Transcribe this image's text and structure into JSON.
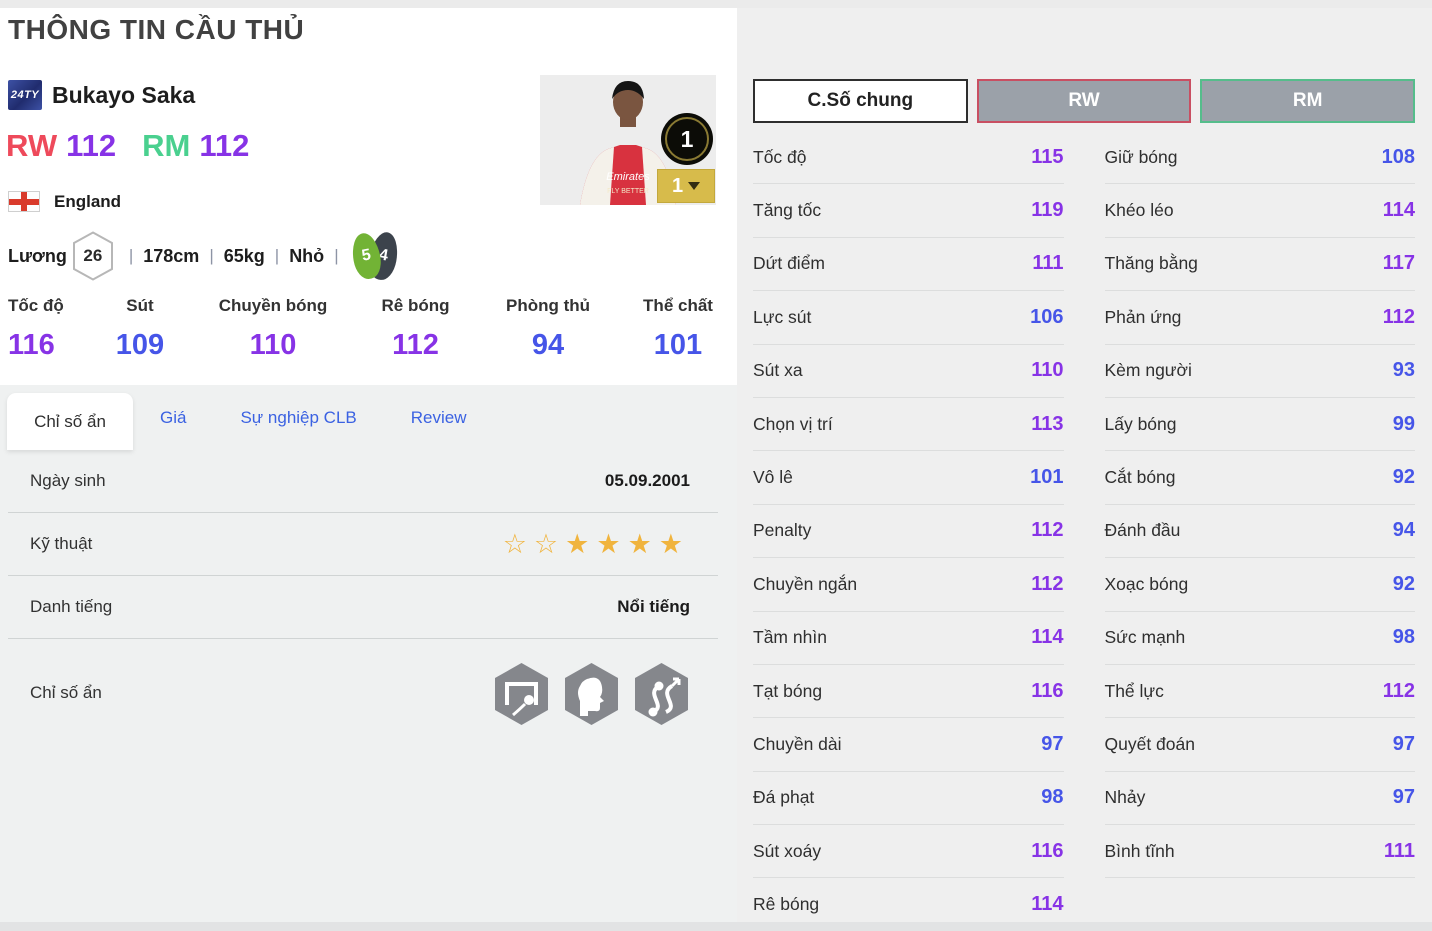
{
  "page": {
    "title": "THÔNG TIN CẦU THỦ"
  },
  "player": {
    "card_badge": "24TY",
    "name": "Bukayo Saka",
    "positions": [
      {
        "label": "RW",
        "rating": "112",
        "label_color": "#ee4a5b"
      },
      {
        "label": "RM",
        "rating": "112",
        "label_color": "#4ad08f"
      }
    ],
    "nation": "England",
    "wage_label": "Lương",
    "wage": "26",
    "height": "178cm",
    "weight": "65kg",
    "body_type": "Nhỏ",
    "foot_left": "5",
    "foot_right": "4",
    "level_badge": "1",
    "enhance_badge": "1",
    "jersey_sponsor": "Emirates",
    "jersey_slogan": "FLY BETTER"
  },
  "summary_stats": [
    {
      "label": "Tốc độ",
      "value": "116"
    },
    {
      "label": "Sút",
      "value": "109"
    },
    {
      "label": "Chuyền bóng",
      "value": "110"
    },
    {
      "label": "Rê bóng",
      "value": "112"
    },
    {
      "label": "Phòng thủ",
      "value": "94"
    },
    {
      "label": "Thể chất",
      "value": "101"
    }
  ],
  "tabs": [
    {
      "label": "Chỉ số ẩn",
      "active": true
    },
    {
      "label": "Giá",
      "active": false
    },
    {
      "label": "Sự nghiệp CLB",
      "active": false
    },
    {
      "label": "Review",
      "active": false
    }
  ],
  "details": {
    "birth_label": "Ngày sinh",
    "birth_value": "05.09.2001",
    "skill_label": "Kỹ thuật",
    "skill_stars_empty": 2,
    "skill_stars_filled": 4,
    "fame_label": "Danh tiếng",
    "fame_value": "Nổi tiếng",
    "hidden_label": "Chỉ số ẩn",
    "hidden_icons": [
      "goal-curve-shot-icon",
      "flair-head-icon",
      "dribble-path-icon"
    ]
  },
  "stat_panel": {
    "buttons": [
      {
        "label": "C.Số chung",
        "style": "overall"
      },
      {
        "label": "RW",
        "style": "rw"
      },
      {
        "label": "RM",
        "style": "rm"
      }
    ],
    "columns": [
      [
        {
          "label": "Tốc độ",
          "value": "115"
        },
        {
          "label": "Tăng tốc",
          "value": "119"
        },
        {
          "label": "Dứt điểm",
          "value": "111"
        },
        {
          "label": "Lực sút",
          "value": "106"
        },
        {
          "label": "Sút xa",
          "value": "110"
        },
        {
          "label": "Chọn vị trí",
          "value": "113"
        },
        {
          "label": "Vô lê",
          "value": "101"
        },
        {
          "label": "Penalty",
          "value": "112"
        },
        {
          "label": "Chuyền ngắn",
          "value": "112"
        },
        {
          "label": "Tầm nhìn",
          "value": "114"
        },
        {
          "label": "Tạt bóng",
          "value": "116"
        },
        {
          "label": "Chuyền dài",
          "value": "97"
        },
        {
          "label": "Đá phạt",
          "value": "98"
        },
        {
          "label": "Sút xoáy",
          "value": "116"
        },
        {
          "label": "Rê bóng",
          "value": "114"
        }
      ],
      [
        {
          "label": "Giữ bóng",
          "value": "108"
        },
        {
          "label": "Khéo léo",
          "value": "114"
        },
        {
          "label": "Thăng bằng",
          "value": "117"
        },
        {
          "label": "Phản ứng",
          "value": "112"
        },
        {
          "label": "Kèm người",
          "value": "93"
        },
        {
          "label": "Lấy bóng",
          "value": "99"
        },
        {
          "label": "Cắt bóng",
          "value": "92"
        },
        {
          "label": "Đánh đầu",
          "value": "94"
        },
        {
          "label": "Xoạc bóng",
          "value": "92"
        },
        {
          "label": "Sức mạnh",
          "value": "98"
        },
        {
          "label": "Thể lực",
          "value": "112"
        },
        {
          "label": "Quyết đoán",
          "value": "97"
        },
        {
          "label": "Nhảy",
          "value": "97"
        },
        {
          "label": "Bình tĩnh",
          "value": "111"
        }
      ]
    ]
  },
  "colors": {
    "purple": "#8733e6",
    "blue": "#4655e8",
    "star_gold": "#f0b43e",
    "rw_red": "#ee4a5b",
    "rm_green": "#4ad08f",
    "panel_bg": "#efefef"
  }
}
